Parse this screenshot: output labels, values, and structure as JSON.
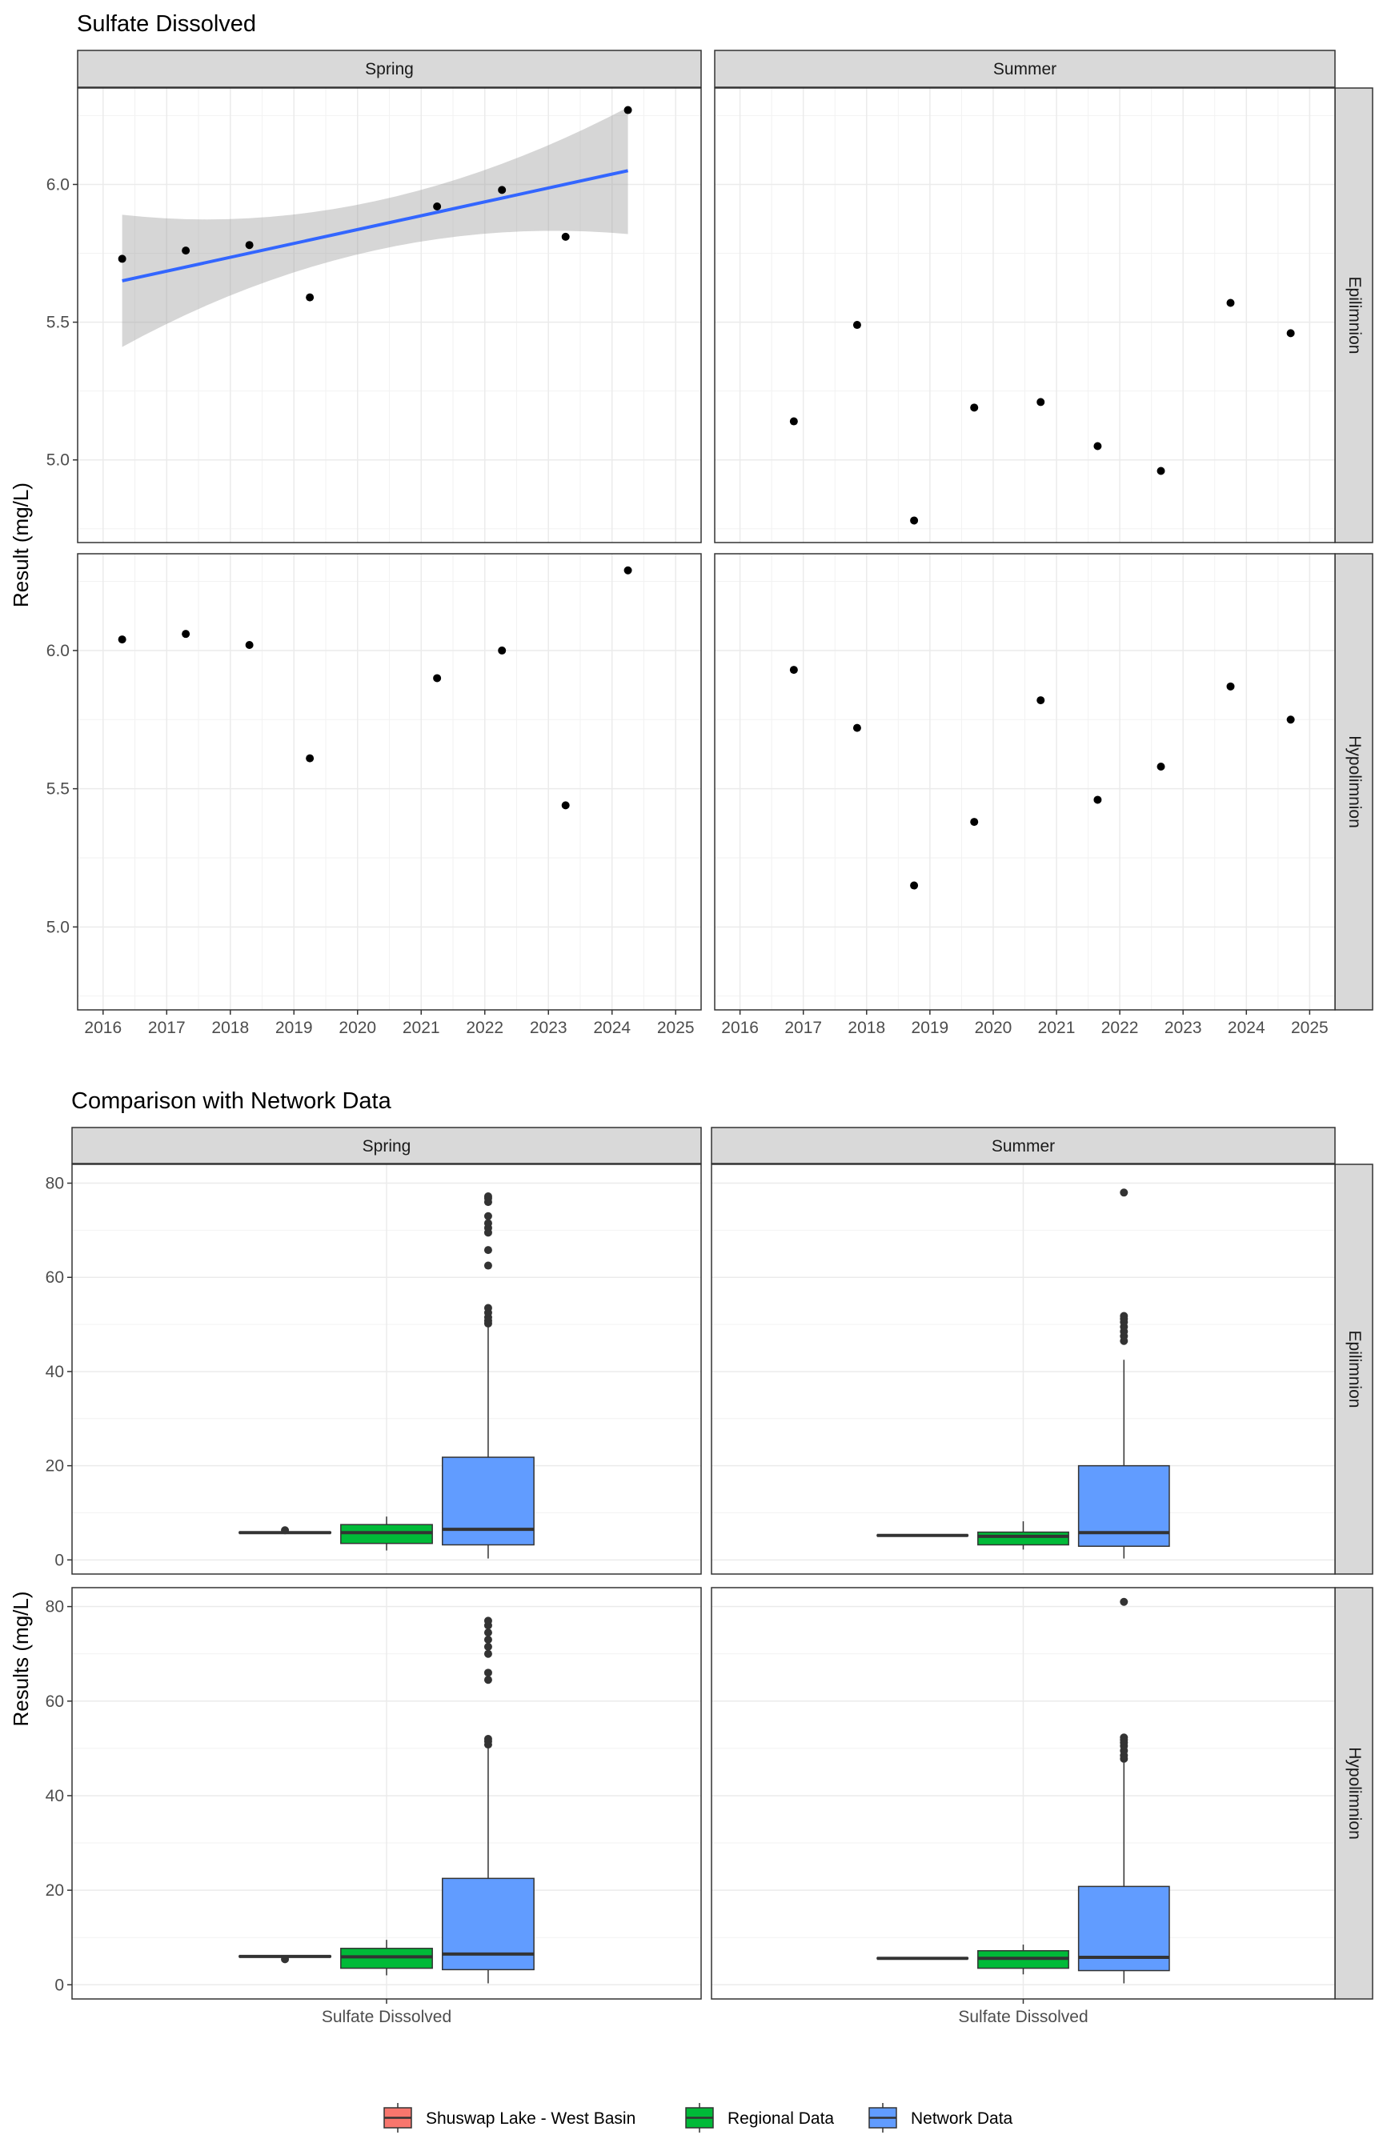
{
  "colors": {
    "shuswap": "#F8766D",
    "regional": "#00BA38",
    "network": "#619CFF",
    "trend": "#3366FF",
    "band": "#999999",
    "strip": "#D9D9D9",
    "point": "#000000"
  },
  "chart_data": [
    {
      "type": "scatter",
      "title": "Sulfate Dissolved",
      "ylabel": "Result (mg/L)",
      "xlabel": "",
      "x_ticks": [
        "2016",
        "2017",
        "2018",
        "2019",
        "2020",
        "2021",
        "2022",
        "2023",
        "2024",
        "2025"
      ],
      "y_ticks": [
        "5.0",
        "5.5",
        "6.0"
      ],
      "xlim": [
        2015.6,
        2025.4
      ],
      "ylim": [
        4.7,
        6.35
      ],
      "grid": true,
      "columns": [
        "Spring",
        "Summer"
      ],
      "rows": [
        "Epilimnion",
        "Hypolimnion"
      ],
      "panels": [
        {
          "column": "Spring",
          "row": "Epilimnion",
          "points": [
            {
              "x": 2016.3,
              "y": 5.73
            },
            {
              "x": 2017.3,
              "y": 5.76
            },
            {
              "x": 2018.3,
              "y": 5.78
            },
            {
              "x": 2019.25,
              "y": 5.59
            },
            {
              "x": 2021.25,
              "y": 5.92
            },
            {
              "x": 2022.27,
              "y": 5.98
            },
            {
              "x": 2023.27,
              "y": 5.81
            },
            {
              "x": 2024.25,
              "y": 6.27
            }
          ],
          "trend": {
            "x": [
              2016.3,
              2024.25
            ],
            "y": [
              5.65,
              6.05
            ],
            "ci_lower_start": 5.42,
            "ci_lower_end": 5.82,
            "ci_upper_start": 5.89,
            "ci_upper_end": 6.28
          }
        },
        {
          "column": "Summer",
          "row": "Epilimnion",
          "points": [
            {
              "x": 2016.85,
              "y": 5.14
            },
            {
              "x": 2017.85,
              "y": 5.49
            },
            {
              "x": 2018.75,
              "y": 4.78
            },
            {
              "x": 2019.7,
              "y": 5.19
            },
            {
              "x": 2020.75,
              "y": 5.21
            },
            {
              "x": 2021.65,
              "y": 5.05
            },
            {
              "x": 2022.65,
              "y": 4.96
            },
            {
              "x": 2023.75,
              "y": 5.57
            },
            {
              "x": 2024.7,
              "y": 5.46
            }
          ]
        },
        {
          "column": "Spring",
          "row": "Hypolimnion",
          "points": [
            {
              "x": 2016.3,
              "y": 6.04
            },
            {
              "x": 2017.3,
              "y": 6.06
            },
            {
              "x": 2018.3,
              "y": 6.02
            },
            {
              "x": 2019.25,
              "y": 5.61
            },
            {
              "x": 2021.25,
              "y": 5.9
            },
            {
              "x": 2022.27,
              "y": 6.0
            },
            {
              "x": 2023.27,
              "y": 5.44
            },
            {
              "x": 2024.25,
              "y": 6.29
            }
          ]
        },
        {
          "column": "Summer",
          "row": "Hypolimnion",
          "points": [
            {
              "x": 2016.85,
              "y": 5.93
            },
            {
              "x": 2017.85,
              "y": 5.72
            },
            {
              "x": 2018.75,
              "y": 5.15
            },
            {
              "x": 2019.7,
              "y": 5.38
            },
            {
              "x": 2020.75,
              "y": 5.82
            },
            {
              "x": 2021.65,
              "y": 5.46
            },
            {
              "x": 2022.65,
              "y": 5.58
            },
            {
              "x": 2023.75,
              "y": 5.87
            },
            {
              "x": 2024.7,
              "y": 5.75
            }
          ]
        }
      ]
    },
    {
      "type": "box",
      "title": "Comparison with Network Data",
      "ylabel": "Results (mg/L)",
      "x_category": "Sulfate Dissolved",
      "y_ticks": [
        "0",
        "20",
        "40",
        "60",
        "80"
      ],
      "ylim": [
        -3,
        84
      ],
      "grid": true,
      "columns": [
        "Spring",
        "Summer"
      ],
      "rows": [
        "Epilimnion",
        "Hypolimnion"
      ],
      "legend": {
        "placement": "bottom",
        "entries": [
          "Shuswap Lake - West Basin",
          "Regional Data",
          "Network Data"
        ]
      },
      "panels": [
        {
          "column": "Spring",
          "row": "Epilimnion",
          "boxes": [
            {
              "group": "Shuswap Lake - West Basin",
              "q1": 5.7,
              "median": 5.8,
              "q3": 5.9,
              "whisker_low": 5.6,
              "whisker_high": 6.0,
              "outliers": [
                6.3
              ]
            },
            {
              "group": "Regional Data",
              "q1": 3.5,
              "median": 5.8,
              "q3": 7.5,
              "whisker_low": 2.0,
              "whisker_high": 9.2,
              "outliers": []
            },
            {
              "group": "Network Data",
              "q1": 3.2,
              "median": 6.5,
              "q3": 21.8,
              "whisker_low": 0.3,
              "whisker_high": 49.5,
              "outliers": [
                50.2,
                50.8,
                51.5,
                52.5,
                53.5,
                62.5,
                65.8,
                69.5,
                70.5,
                71.5,
                73.0,
                76.0,
                76.8,
                77.2
              ]
            }
          ]
        },
        {
          "column": "Summer",
          "row": "Epilimnion",
          "boxes": [
            {
              "group": "Shuswap Lake - West Basin",
              "q1": 5.1,
              "median": 5.2,
              "q3": 5.3,
              "whisker_low": 5.0,
              "whisker_high": 5.4,
              "outliers": []
            },
            {
              "group": "Regional Data",
              "q1": 3.2,
              "median": 5.0,
              "q3": 5.9,
              "whisker_low": 2.2,
              "whisker_high": 8.2,
              "outliers": []
            },
            {
              "group": "Network Data",
              "q1": 2.9,
              "median": 5.8,
              "q3": 20.0,
              "whisker_low": 0.3,
              "whisker_high": 42.5,
              "outliers": [
                46.5,
                47.5,
                48.5,
                49.5,
                50.5,
                51.2,
                51.8,
                78.0
              ]
            }
          ]
        },
        {
          "column": "Spring",
          "row": "Hypolimnion",
          "boxes": [
            {
              "group": "Shuswap Lake - West Basin",
              "q1": 5.9,
              "median": 6.0,
              "q3": 6.1,
              "whisker_low": 5.8,
              "whisker_high": 6.2,
              "outliers": [
                5.4
              ]
            },
            {
              "group": "Regional Data",
              "q1": 3.5,
              "median": 5.9,
              "q3": 7.7,
              "whisker_low": 2.0,
              "whisker_high": 9.5,
              "outliers": []
            },
            {
              "group": "Network Data",
              "q1": 3.2,
              "median": 6.5,
              "q3": 22.5,
              "whisker_low": 0.3,
              "whisker_high": 50.0,
              "outliers": [
                50.8,
                51.5,
                52.0,
                64.5,
                66.0,
                70.0,
                71.5,
                73.0,
                74.5,
                76.0,
                77.0
              ]
            }
          ]
        },
        {
          "column": "Summer",
          "row": "Hypolimnion",
          "boxes": [
            {
              "group": "Shuswap Lake - West Basin",
              "q1": 5.5,
              "median": 5.6,
              "q3": 5.7,
              "whisker_low": 5.4,
              "whisker_high": 5.8,
              "outliers": []
            },
            {
              "group": "Regional Data",
              "q1": 3.5,
              "median": 5.6,
              "q3": 7.2,
              "whisker_low": 2.2,
              "whisker_high": 8.5,
              "outliers": []
            },
            {
              "group": "Network Data",
              "q1": 3.0,
              "median": 5.8,
              "q3": 20.8,
              "whisker_low": 0.3,
              "whisker_high": 47.0,
              "outliers": [
                47.8,
                48.5,
                49.5,
                50.5,
                51.2,
                51.8,
                52.3,
                81.0
              ]
            }
          ]
        }
      ]
    }
  ]
}
